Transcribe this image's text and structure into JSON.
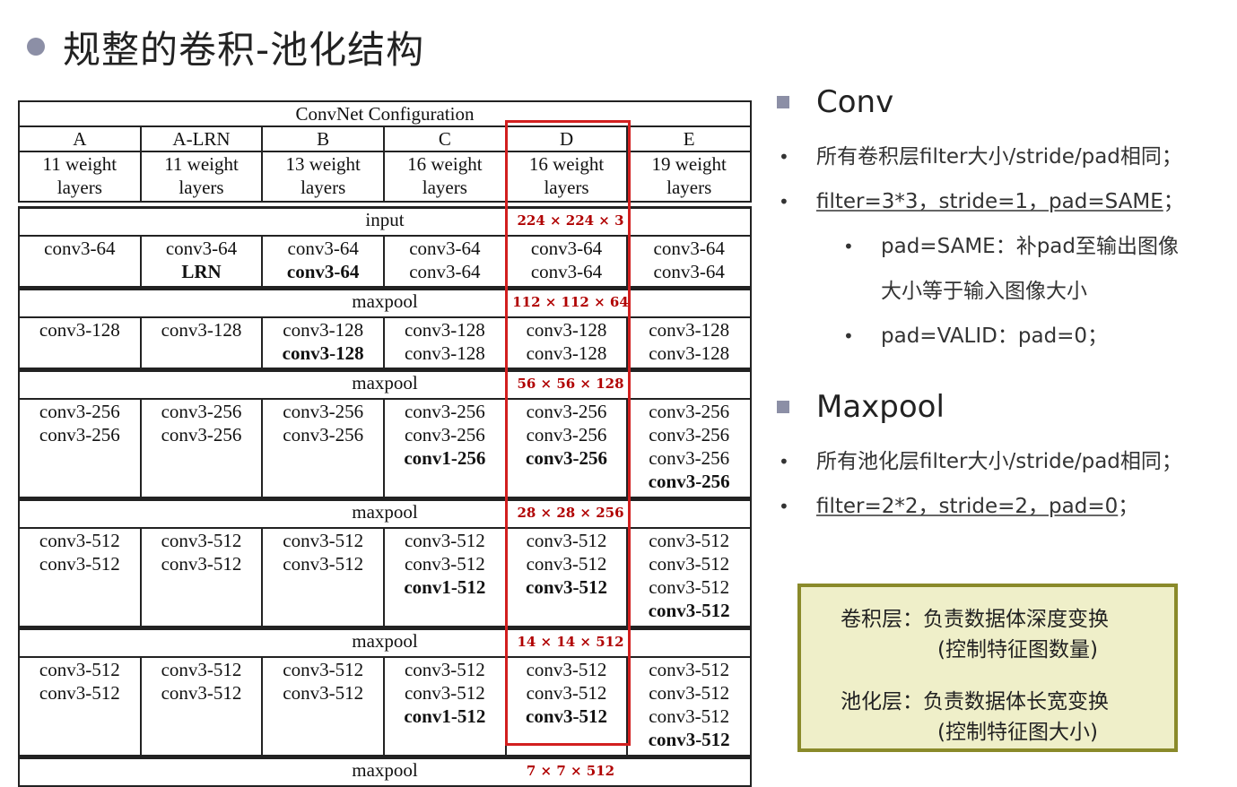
{
  "title": "规整的卷积-池化结构",
  "table": {
    "caption": "ConvNet Configuration",
    "columns": [
      {
        "id": "A",
        "desc1": "11 weight",
        "desc2": "layers"
      },
      {
        "id": "A-LRN",
        "desc1": "11 weight",
        "desc2": "layers"
      },
      {
        "id": "B",
        "desc1": "13 weight",
        "desc2": "layers"
      },
      {
        "id": "C",
        "desc1": "16 weight",
        "desc2": "layers"
      },
      {
        "id": "D",
        "desc1": "16 weight",
        "desc2": "layers"
      },
      {
        "id": "E",
        "desc1": "19 weight",
        "desc2": "layers"
      }
    ],
    "input_label": "input",
    "input_dim": "224 × 224 × 3",
    "pool_label": "maxpool",
    "blocks": [
      {
        "cells": [
          [
            "conv3-64"
          ],
          [
            "conv3-64",
            "*LRN"
          ],
          [
            "conv3-64",
            "*conv3-64"
          ],
          [
            "conv3-64",
            "conv3-64"
          ],
          [
            "conv3-64",
            "conv3-64"
          ],
          [
            "conv3-64",
            "conv3-64"
          ]
        ],
        "pool_dim": "112 × 112 × 64"
      },
      {
        "cells": [
          [
            "conv3-128"
          ],
          [
            "conv3-128"
          ],
          [
            "conv3-128",
            "*conv3-128"
          ],
          [
            "conv3-128",
            "conv3-128"
          ],
          [
            "conv3-128",
            "conv3-128"
          ],
          [
            "conv3-128",
            "conv3-128"
          ]
        ],
        "pool_dim": "56 × 56 × 128"
      },
      {
        "cells": [
          [
            "conv3-256",
            "conv3-256"
          ],
          [
            "conv3-256",
            "conv3-256"
          ],
          [
            "conv3-256",
            "conv3-256"
          ],
          [
            "conv3-256",
            "conv3-256",
            "*conv1-256"
          ],
          [
            "conv3-256",
            "conv3-256",
            "*conv3-256"
          ],
          [
            "conv3-256",
            "conv3-256",
            "conv3-256",
            "*conv3-256"
          ]
        ],
        "pool_dim": "28 × 28 × 256"
      },
      {
        "cells": [
          [
            "conv3-512",
            "conv3-512"
          ],
          [
            "conv3-512",
            "conv3-512"
          ],
          [
            "conv3-512",
            "conv3-512"
          ],
          [
            "conv3-512",
            "conv3-512",
            "*conv1-512"
          ],
          [
            "conv3-512",
            "conv3-512",
            "*conv3-512"
          ],
          [
            "conv3-512",
            "conv3-512",
            "conv3-512",
            "*conv3-512"
          ]
        ],
        "pool_dim": "14 × 14 × 512"
      },
      {
        "cells": [
          [
            "conv3-512",
            "conv3-512"
          ],
          [
            "conv3-512",
            "conv3-512"
          ],
          [
            "conv3-512",
            "conv3-512"
          ],
          [
            "conv3-512",
            "conv3-512",
            "*conv1-512"
          ],
          [
            "conv3-512",
            "conv3-512",
            "*conv3-512"
          ],
          [
            "conv3-512",
            "conv3-512",
            "conv3-512",
            "*conv3-512"
          ]
        ],
        "pool_dim": "7 × 7 × 512"
      }
    ],
    "highlight_column": "D",
    "highlight_color": "#d21f1f",
    "dim_color": "#b00000"
  },
  "conv": {
    "heading": "Conv",
    "bullet1": "所有卷积层filter大小/stride/pad相同；",
    "bullet2": "filter=3*3，stride=1，pad=SAME",
    "bullet2_tail": "；",
    "sub1_line1": "pad=SAME：补pad至输出图像",
    "sub1_line2": "大小等于输入图像大小",
    "sub2": "pad=VALID：pad=0；"
  },
  "maxpool": {
    "heading": "Maxpool",
    "bullet1": "所有池化层filter大小/stride/pad相同；",
    "bullet2": "filter=2*2，stride=2，pad=0",
    "bullet2_tail": "；"
  },
  "note": {
    "line1": "卷积层：负责数据体深度变换",
    "line2": "(控制特征图数量)",
    "line3": "池化层：负责数据体长宽变换",
    "line4": "(控制特征图大小)"
  },
  "bullet_glyph": "•",
  "colors": {
    "accent": "#8c8fa6",
    "note_bg": "#efefc9",
    "note_border": "#8a8a2a"
  }
}
